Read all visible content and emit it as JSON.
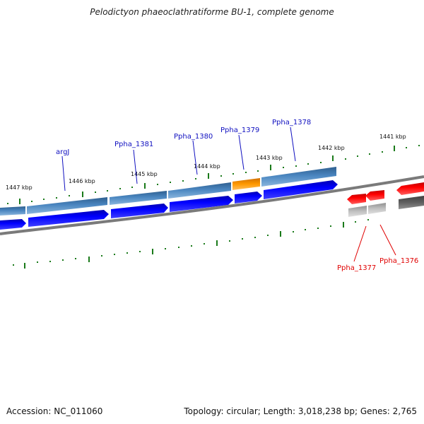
{
  "title": "Pelodictyon phaeoclathratiforme BU-1, complete genome",
  "footer": {
    "accession": "Accession: NC_011060",
    "topology": "Topology: circular; Length: 3,018,238 bp; Genes: 2,765"
  },
  "ticks": [
    {
      "label": "1447 kbp"
    },
    {
      "label": "1446 kbp"
    },
    {
      "label": "1445 kbp"
    },
    {
      "label": "1444 kbp"
    },
    {
      "label": "1443 kbp"
    },
    {
      "label": "1442 kbp"
    },
    {
      "label": "1441 kbp"
    }
  ],
  "gene_labels": [
    {
      "text": "argJ",
      "color": "#1010c0"
    },
    {
      "text": "Ppha_1381",
      "color": "#1010c0"
    },
    {
      "text": "Ppha_1380",
      "color": "#1010c0"
    },
    {
      "text": "Ppha_1379",
      "color": "#1010c0"
    },
    {
      "text": "Ppha_1378",
      "color": "#1010c0"
    },
    {
      "text": "Ppha_1377",
      "color": "#e00000"
    },
    {
      "text": "Ppha_1376",
      "color": "#e00000"
    }
  ],
  "colors": {
    "forward_gene": "#0000ee",
    "forward_cds": "#4a86c0",
    "highlight_cds": "#ff9900",
    "reverse_gene": "#ee0000",
    "reverse_cds": "#b8b8b8",
    "backbone": "#808080",
    "tick": "#1a7a1a"
  }
}
